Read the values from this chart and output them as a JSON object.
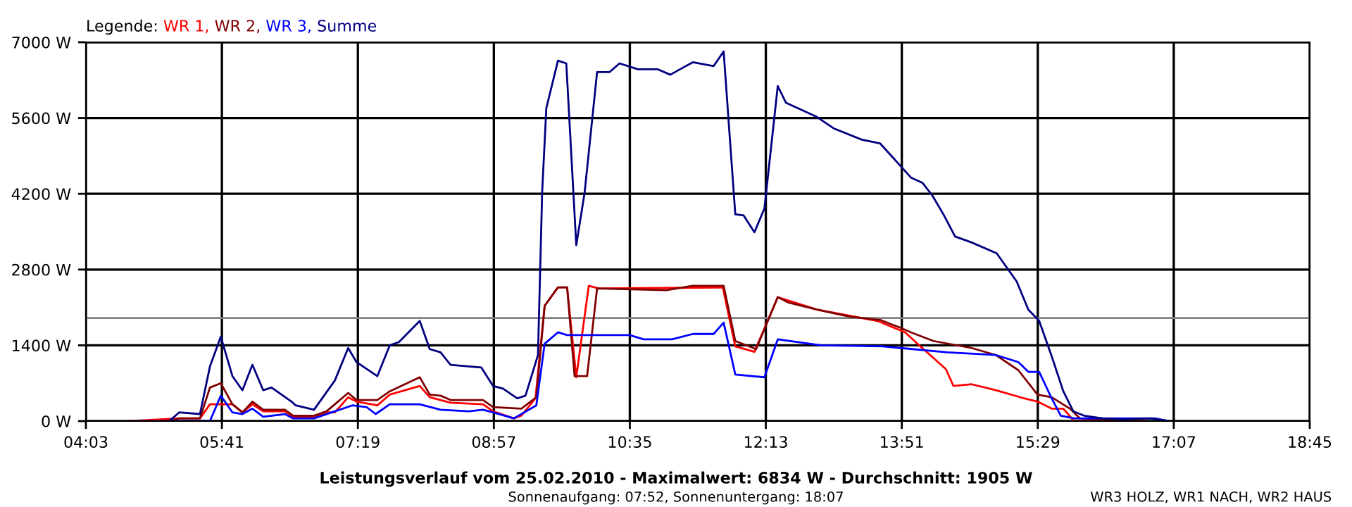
{
  "chart_data": {
    "type": "line",
    "title": "Leistungsverlauf vom 25.02.2010 - Maximalwert: 6834 W - Durchschnitt: 1905 W",
    "subtitle": "Sonnenaufgang: 07:52, Sonnenuntergang: 18:07",
    "legend_title": "Legende:",
    "annotations": [
      "WR3 HOLZ, WR1 NACH, WR2 HAUS",
      ",",
      ",",
      ","
    ],
    "legend": "top left",
    "grid": true,
    "marker": "none",
    "line_style": "solid",
    "xlim": [
      4.05,
      18.75
    ],
    "xticks": [
      {
        "value": 4.05,
        "label": "04:03"
      },
      {
        "value": 5.6833,
        "label": "05:41"
      },
      {
        "value": 7.3167,
        "label": "07:19"
      },
      {
        "value": 8.95,
        "label": "08:57"
      },
      {
        "value": 10.5833,
        "label": "10:35"
      },
      {
        "value": 12.2167,
        "label": "12:13"
      },
      {
        "value": 13.85,
        "label": "13:51"
      },
      {
        "value": 15.4833,
        "label": "15:29"
      },
      {
        "value": 17.1167,
        "label": "17:07"
      },
      {
        "value": 18.75,
        "label": "18:45"
      }
    ],
    "ylim": [
      0,
      7000
    ],
    "yticks": [
      {
        "value": 0,
        "label": "0 W"
      },
      {
        "value": 1400,
        "label": "1400 W"
      },
      {
        "value": 2800,
        "label": "2800 W"
      },
      {
        "value": 4200,
        "label": "4200 W"
      },
      {
        "value": 5600,
        "label": "5600 W"
      },
      {
        "value": 7000,
        "label": "7000 W"
      }
    ],
    "ref_lines": [
      {
        "axis": "y",
        "value": 1905,
        "color": "#808080"
      }
    ],
    "series": [
      {
        "name": "WR 1",
        "color": "#ff0000",
        "x": [
          4.59,
          5.17,
          5.42,
          5.54,
          5.81,
          5.93,
          6.05,
          6.18,
          6.44,
          6.54,
          6.79,
          6.94,
          7.04,
          7.2,
          7.3,
          7.55,
          7.7,
          8.06,
          8.18,
          8.43,
          8.82,
          8.94,
          9.19,
          9.28,
          9.45,
          9.56,
          9.72,
          9.83,
          9.94,
          10.09,
          10.21,
          11.7,
          11.85,
          12.08,
          12.36,
          12.83,
          13.56,
          13.89,
          14.06,
          14.38,
          14.47,
          14.69,
          14.98,
          15.32,
          15.48,
          15.65,
          15.79,
          15.92,
          16.77
        ],
        "values": [
          0,
          50,
          50,
          310,
          310,
          160,
          310,
          180,
          180,
          80,
          80,
          160,
          160,
          440,
          360,
          290,
          490,
          650,
          440,
          340,
          310,
          180,
          50,
          100,
          420,
          2130,
          2470,
          2470,
          810,
          2500,
          2450,
          2470,
          1380,
          1280,
          2290,
          2060,
          1850,
          1640,
          1400,
          960,
          650,
          680,
          570,
          420,
          360,
          230,
          230,
          0,
          0
        ]
      },
      {
        "name": "WR 2",
        "color": "#800000",
        "x": [
          4.59,
          5.05,
          5.17,
          5.42,
          5.54,
          5.67,
          5.81,
          5.93,
          6.05,
          6.18,
          6.44,
          6.54,
          6.79,
          6.94,
          7.04,
          7.2,
          7.3,
          7.55,
          7.7,
          8.06,
          8.18,
          8.31,
          8.43,
          8.82,
          8.94,
          9.28,
          9.46,
          9.56,
          9.72,
          9.83,
          9.92,
          10.07,
          10.19,
          11.02,
          11.34,
          11.71,
          11.85,
          12.1,
          12.36,
          12.49,
          12.83,
          13.22,
          13.59,
          13.84,
          13.96,
          14.23,
          14.69,
          14.98,
          15.25,
          15.48,
          15.65,
          15.87,
          15.99,
          16.26,
          16.77
        ],
        "values": [
          0,
          0,
          50,
          50,
          620,
          700,
          310,
          160,
          360,
          210,
          210,
          100,
          100,
          180,
          310,
          520,
          390,
          390,
          550,
          810,
          490,
          470,
          390,
          390,
          260,
          230,
          440,
          2130,
          2470,
          2470,
          830,
          830,
          2450,
          2420,
          2500,
          2500,
          1480,
          1330,
          2290,
          2190,
          2060,
          1930,
          1870,
          1720,
          1640,
          1480,
          1350,
          1220,
          940,
          490,
          440,
          230,
          50,
          30,
          0
        ]
      },
      {
        "name": "WR 3",
        "color": "#0000ff",
        "x": [
          5.05,
          5.35,
          5.54,
          5.67,
          5.81,
          5.93,
          6.05,
          6.18,
          6.44,
          6.54,
          6.79,
          7.04,
          7.25,
          7.42,
          7.53,
          7.7,
          8.06,
          8.31,
          8.65,
          8.82,
          8.94,
          9.19,
          9.46,
          9.56,
          9.72,
          9.83,
          10.58,
          10.75,
          11.09,
          11.34,
          11.59,
          11.71,
          11.85,
          12.2,
          12.36,
          12.88,
          13.62,
          13.84,
          14.4,
          14.98,
          15.25,
          15.37,
          15.5,
          15.65,
          15.76,
          15.92,
          16.43,
          16.89,
          17.06
        ],
        "values": [
          0,
          0,
          0,
          470,
          160,
          130,
          230,
          80,
          130,
          50,
          50,
          180,
          290,
          260,
          130,
          310,
          310,
          210,
          180,
          210,
          160,
          50,
          290,
          1430,
          1640,
          1590,
          1590,
          1510,
          1510,
          1610,
          1610,
          1820,
          860,
          810,
          1510,
          1400,
          1380,
          1350,
          1270,
          1220,
          1090,
          910,
          910,
          420,
          100,
          50,
          50,
          50,
          0
        ]
      },
      {
        "name": "Summe",
        "color": "#000080",
        "x": [
          4.59,
          5.05,
          5.17,
          5.42,
          5.54,
          5.67,
          5.81,
          5.93,
          6.05,
          6.18,
          6.28,
          6.52,
          6.57,
          6.79,
          7.04,
          7.2,
          7.3,
          7.55,
          7.7,
          7.81,
          8.06,
          8.18,
          8.31,
          8.43,
          8.8,
          8.94,
          9.06,
          9.23,
          9.33,
          9.48,
          9.53,
          9.58,
          9.72,
          9.82,
          9.94,
          10.04,
          10.19,
          10.34,
          10.46,
          10.68,
          10.92,
          11.07,
          11.22,
          11.34,
          11.59,
          11.71,
          11.85,
          11.95,
          12.08,
          12.2,
          12.36,
          12.46,
          12.83,
          13.03,
          13.37,
          13.59,
          13.79,
          13.96,
          14.1,
          14.22,
          14.35,
          14.49,
          14.69,
          14.99,
          15.23,
          15.37,
          15.5,
          15.65,
          15.79,
          15.91,
          16.04,
          16.26,
          16.5,
          16.84,
          17.06
        ],
        "values": [
          0,
          0,
          160,
          130,
          1010,
          1560,
          830,
          570,
          1040,
          570,
          620,
          360,
          290,
          210,
          750,
          1350,
          1090,
          830,
          1400,
          1460,
          1850,
          1330,
          1270,
          1040,
          990,
          650,
          600,
          420,
          470,
          1220,
          4220,
          5780,
          6660,
          6610,
          3250,
          4220,
          6450,
          6450,
          6610,
          6500,
          6500,
          6400,
          6530,
          6630,
          6560,
          6830,
          3820,
          3800,
          3490,
          3930,
          6190,
          5880,
          5620,
          5410,
          5200,
          5130,
          4790,
          4500,
          4400,
          4160,
          3820,
          3410,
          3300,
          3100,
          2580,
          2060,
          1850,
          1200,
          550,
          180,
          100,
          50,
          30,
          50,
          0
        ]
      }
    ]
  }
}
